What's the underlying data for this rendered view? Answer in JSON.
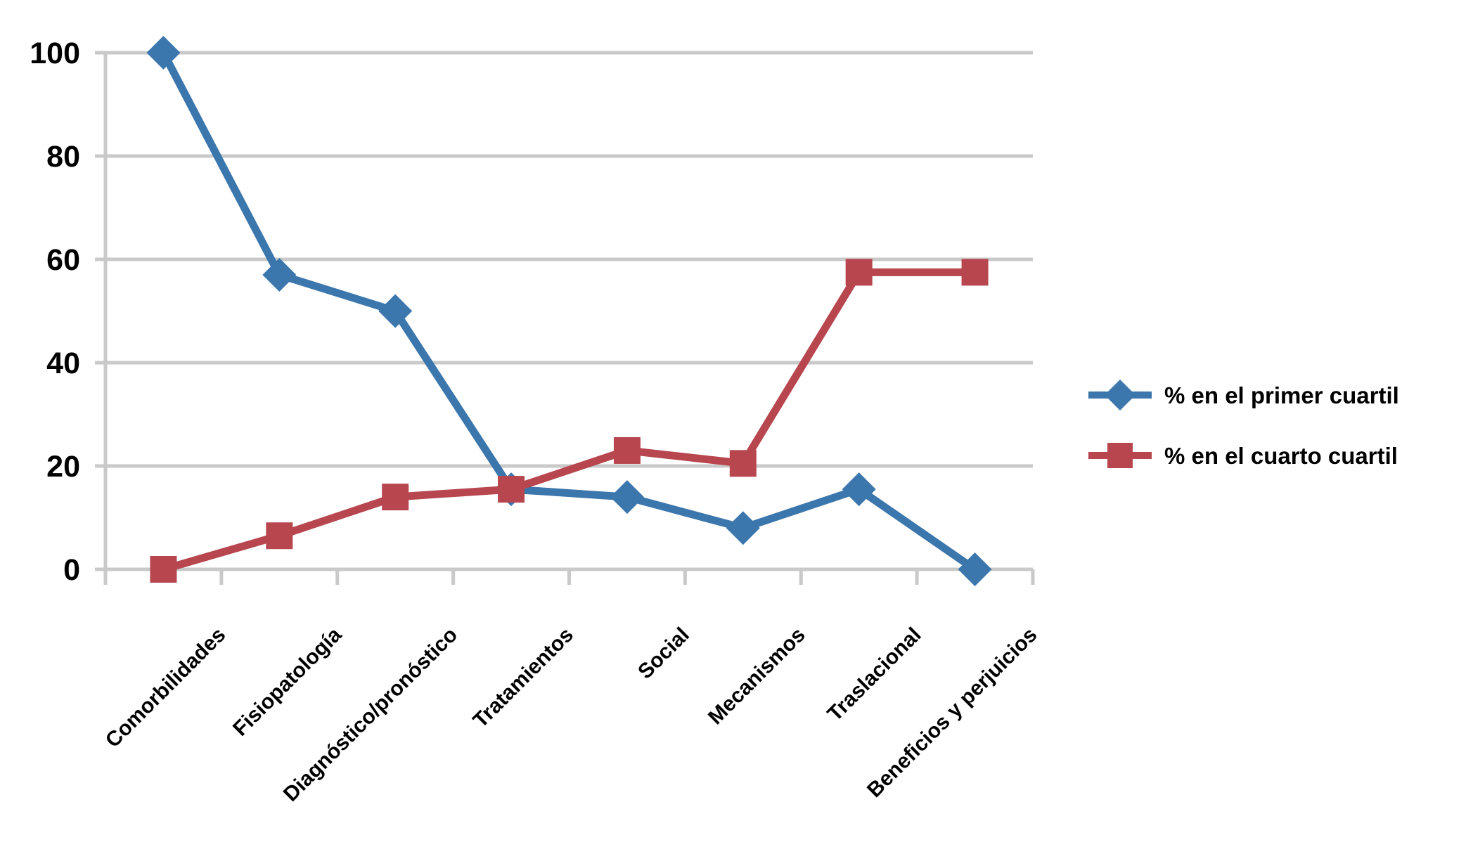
{
  "chart_data": {
    "type": "line",
    "title": "",
    "xlabel": "",
    "ylabel": "",
    "categories": [
      "Comorbilidades",
      "Fisiopatología",
      "Diagnóstico/pronóstico",
      "Tratamientos",
      "Social",
      "Mecanismos",
      "Traslacional",
      "Beneficios y perjuicios"
    ],
    "series": [
      {
        "name": "% en el primer cuartil",
        "marker": "diamond",
        "color": "#3B76AC",
        "values": [
          100,
          57,
          50,
          15.5,
          14,
          8,
          15.5,
          0
        ]
      },
      {
        "name": "% en el cuarto cuartil",
        "marker": "square",
        "color": "#B7464F",
        "values": [
          0,
          6.5,
          14,
          15.5,
          23,
          20.5,
          57.5,
          57.5
        ]
      }
    ],
    "ylim": [
      0,
      100
    ],
    "yticks": [
      0,
      20,
      40,
      60,
      80,
      100
    ],
    "grid": true,
    "legend_position": "right",
    "gridline_color": "#C9C9C9",
    "text_color": "#000000",
    "background": "#FFFFFF"
  }
}
